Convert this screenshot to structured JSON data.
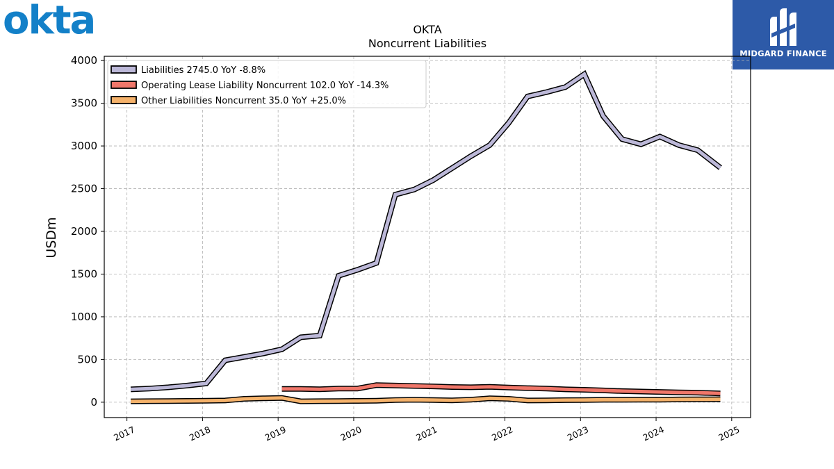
{
  "header": {
    "company_logo": "okta",
    "brand_logo": "MIDGARD FINANCE"
  },
  "colors": {
    "okta_blue": "#1380c8",
    "brand_bg": "#2d5aa8",
    "liabilities": "#bcb8d8",
    "operating_lease": "#f0776a",
    "other_liabilities": "#f5b26b"
  },
  "chart_data": {
    "type": "line",
    "title": "OKTA",
    "subtitle": "Noncurrent  Liabilities",
    "ylabel": "USDm",
    "xlabel": "",
    "ylim": [
      -180,
      4050
    ],
    "xlim": [
      2016.7,
      2025.25
    ],
    "yticks": [
      0,
      500,
      1000,
      1500,
      2000,
      2500,
      3000,
      3500,
      4000
    ],
    "xticks": [
      "2017",
      "2018",
      "2019",
      "2020",
      "2021",
      "2022",
      "2023",
      "2024",
      "2025"
    ],
    "grid": true,
    "legend_position": "top-left",
    "series": [
      {
        "name": "Liabilities",
        "legend": "Liabilities  2745.0 YoY -8.8%",
        "color": "#bcb8d8",
        "x": [
          2017.05,
          2017.3,
          2017.55,
          2017.8,
          2018.05,
          2018.3,
          2018.55,
          2018.8,
          2019.05,
          2019.3,
          2019.55,
          2019.8,
          2020.05,
          2020.3,
          2020.55,
          2020.8,
          2021.05,
          2021.3,
          2021.55,
          2021.8,
          2022.05,
          2022.3,
          2022.55,
          2022.8,
          2023.05,
          2023.3,
          2023.55,
          2023.8,
          2024.05,
          2024.3,
          2024.55,
          2024.85
        ],
        "y": [
          150,
          160,
          175,
          195,
          220,
          490,
          530,
          570,
          620,
          760,
          780,
          1480,
          1550,
          1630,
          2430,
          2490,
          2600,
          2740,
          2880,
          3010,
          3270,
          3580,
          3630,
          3690,
          3840,
          3350,
          3080,
          3020,
          3110,
          3010,
          2950,
          2745
        ]
      },
      {
        "name": "Operating Lease Liability Noncurrent",
        "legend": "Operating Lease Liability Noncurrent  102.0 YoY -14.3%",
        "color": "#f0776a",
        "x": [
          2019.05,
          2019.3,
          2019.55,
          2019.8,
          2020.05,
          2020.3,
          2020.55,
          2020.8,
          2021.05,
          2021.3,
          2021.55,
          2021.8,
          2022.05,
          2022.3,
          2022.55,
          2022.8,
          2023.05,
          2023.3,
          2023.55,
          2023.8,
          2024.05,
          2024.3,
          2024.55,
          2024.85
        ],
        "y": [
          155,
          155,
          152,
          160,
          160,
          200,
          195,
          190,
          185,
          178,
          175,
          180,
          172,
          165,
          160,
          150,
          145,
          138,
          130,
          125,
          120,
          115,
          112,
          102
        ]
      },
      {
        "name": "Other Liabilities Noncurrent",
        "legend": "Other Liabilities Noncurrent  35.0 YoY +25.0%",
        "color": "#f5b26b",
        "x": [
          2017.05,
          2017.3,
          2017.55,
          2017.8,
          2018.05,
          2018.3,
          2018.55,
          2018.8,
          2019.05,
          2019.3,
          2019.55,
          2019.8,
          2020.05,
          2020.3,
          2020.55,
          2020.8,
          2021.05,
          2021.3,
          2021.55,
          2021.8,
          2022.05,
          2022.3,
          2022.55,
          2022.8,
          2023.05,
          2023.3,
          2023.55,
          2023.8,
          2024.05,
          2024.3,
          2024.55,
          2024.85
        ],
        "y": [
          10,
          12,
          14,
          15,
          18,
          20,
          40,
          45,
          50,
          10,
          12,
          14,
          15,
          18,
          25,
          28,
          25,
          22,
          30,
          45,
          40,
          20,
          22,
          24,
          26,
          28,
          28,
          30,
          30,
          32,
          33,
          35
        ]
      }
    ]
  }
}
